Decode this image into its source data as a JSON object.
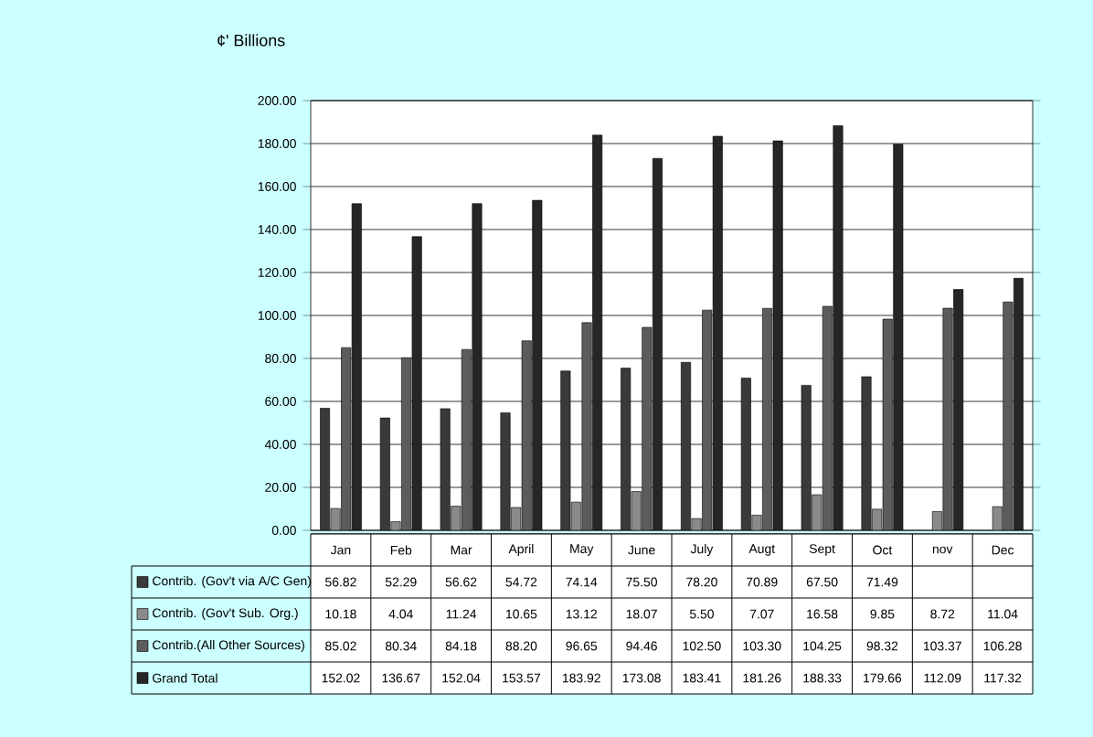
{
  "chart_data": {
    "type": "bar",
    "ylabel": "¢' Billions",
    "categories": [
      "Jan",
      "Feb",
      "Mar",
      "April",
      "May",
      "June",
      "July",
      "Augt",
      "Sept",
      "Oct",
      "nov",
      "Dec"
    ],
    "series": [
      {
        "name": "Contrib. (Gov't via  A/C Gen)",
        "color": "#3a3a3a",
        "values": [
          56.82,
          52.29,
          56.62,
          54.72,
          74.14,
          75.5,
          78.2,
          70.89,
          67.5,
          71.49,
          null,
          null
        ],
        "value_labels": [
          "56.82",
          "52.29",
          "56.62",
          "54.72",
          "74.14",
          "75.50",
          "78.20",
          "70.89",
          "67.50",
          "71.49",
          null,
          null
        ]
      },
      {
        "name": "Contrib. (Gov't Sub. Org.)",
        "color": "#8a8a8a",
        "values": [
          10.18,
          4.04,
          11.24,
          10.65,
          13.12,
          18.07,
          5.5,
          7.07,
          16.58,
          9.85,
          8.72,
          11.04
        ],
        "value_labels": [
          "10.18",
          "4.04",
          "11.24",
          "10.65",
          "13.12",
          "18.07",
          "5.50",
          "7.07",
          "16.58",
          "9.85",
          "8.72",
          "11.04"
        ]
      },
      {
        "name": "Contrib.(All Other Sources)",
        "color": "#5c5c5c",
        "values": [
          85.02,
          80.34,
          84.18,
          88.2,
          96.65,
          94.46,
          102.5,
          103.3,
          104.25,
          98.32,
          103.37,
          106.28
        ],
        "value_labels": [
          "85.02",
          "80.34",
          "84.18",
          "88.20",
          "96.65",
          "94.46",
          "102.50",
          "103.30",
          "104.25",
          "98.32",
          "103.37",
          "106.28"
        ]
      },
      {
        "name": "Grand Total",
        "color": "#262626",
        "values": [
          152.02,
          136.67,
          152.04,
          153.57,
          183.92,
          173.08,
          183.41,
          181.26,
          188.33,
          179.66,
          112.09,
          117.32
        ],
        "value_labels": [
          "152.02",
          "136.67",
          "152.04",
          "153.57",
          "183.92",
          "173.08",
          "183.41",
          "181.26",
          "188.33",
          "179.66",
          "112.09",
          "117.32"
        ]
      }
    ],
    "ylim": [
      0,
      200
    ],
    "yticks": [
      {
        "value": 0,
        "label": "0.00"
      },
      {
        "value": 20,
        "label": "20.00"
      },
      {
        "value": 40,
        "label": "40.00"
      },
      {
        "value": 60,
        "label": "60.00"
      },
      {
        "value": 80,
        "label": "80.00"
      },
      {
        "value": 100,
        "label": "100.00"
      },
      {
        "value": 120,
        "label": "120.00"
      },
      {
        "value": 140,
        "label": "140.00"
      },
      {
        "value": 160,
        "label": "160.00"
      },
      {
        "value": 180,
        "label": "180.00"
      },
      {
        "value": 200,
        "label": "200.00"
      }
    ],
    "grid": "y",
    "legend": "bottom"
  }
}
